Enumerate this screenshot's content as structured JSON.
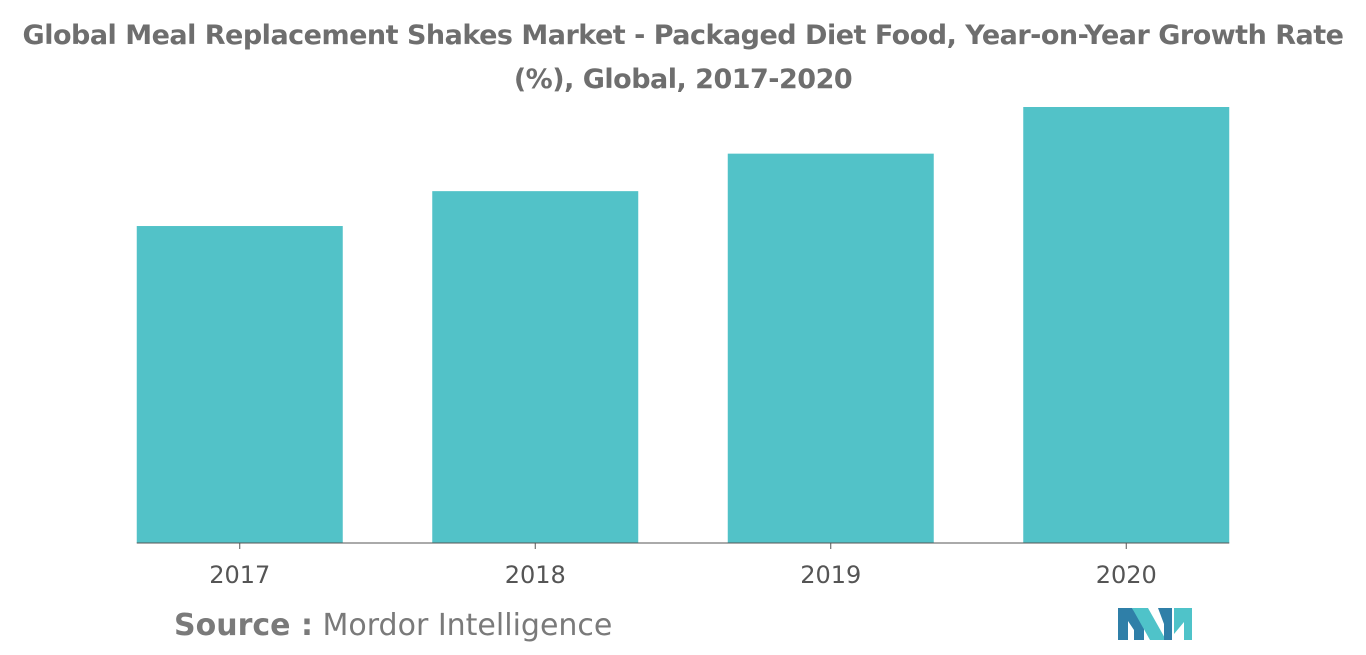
{
  "title": {
    "line1": "Global Meal Replacement Shakes Market - Packaged Diet Food, Year-on-Year Growth Rate",
    "line2": "(%), Global, 2017-2020"
  },
  "source": {
    "prefix": "Source :",
    "name": "Mordor Intelligence"
  },
  "logo": {
    "icon": "mordor-intelligence-logo-icon",
    "colors": [
      "#2f7fa8",
      "#4fc3c9"
    ]
  },
  "colors": {
    "bar": "#52c2c8",
    "axis": "#555555"
  },
  "chart_data": {
    "type": "bar",
    "title": "Global Meal Replacement Shakes Market - Packaged Diet Food, Year-on-Year Growth Rate (%), Global, 2017-2020",
    "categories": [
      "2017",
      "2018",
      "2019",
      "2020"
    ],
    "values": [
      72.7,
      80.7,
      89.3,
      100
    ],
    "xlabel": "",
    "ylabel": "",
    "ylim": [
      0,
      100
    ],
    "grid": false,
    "legend": "none"
  }
}
